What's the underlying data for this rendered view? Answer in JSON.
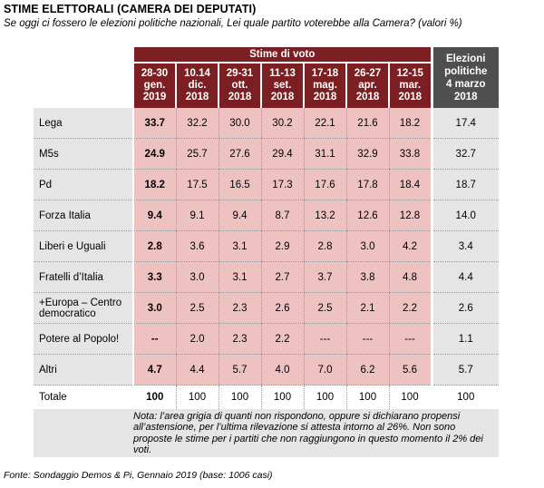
{
  "title": "STIME ELETTORALI (CAMERA DEI DEPUTATI)",
  "subtitle": "Se oggi ci fossero le elezioni politiche nazionali, Lei quale partito voterebbe alla Camera? (valori %)",
  "table": {
    "group_header": "Stime di voto",
    "columns": [
      {
        "l1": "28-30",
        "l2": "gen.",
        "l3": "2019"
      },
      {
        "l1": "10.14",
        "l2": "dic.",
        "l3": "2018"
      },
      {
        "l1": "29-31",
        "l2": "ott.",
        "l3": "2018"
      },
      {
        "l1": "11-13",
        "l2": "set.",
        "l3": "2018"
      },
      {
        "l1": "17-18",
        "l2": "mag.",
        "l3": "2018"
      },
      {
        "l1": "26-27",
        "l2": "apr.",
        "l3": "2018"
      },
      {
        "l1": "12-15",
        "l2": "mar.",
        "l3": "2018"
      }
    ],
    "elections_header": {
      "l1": "Elezioni",
      "l2": "politiche",
      "l3": "4 marzo",
      "l4": "2018"
    },
    "rows": [
      {
        "party": "Lega",
        "values": [
          "33.7",
          "32.2",
          "30.0",
          "30.2",
          "22.1",
          "21.6",
          "18.2"
        ],
        "elections": "17.4"
      },
      {
        "party": "M5s",
        "values": [
          "24.9",
          "25.7",
          "27.6",
          "29.4",
          "31.1",
          "32.9",
          "33.8"
        ],
        "elections": "32.7"
      },
      {
        "party": "Pd",
        "values": [
          "18.2",
          "17.5",
          "16.5",
          "17.3",
          "17.6",
          "17.8",
          "18.4"
        ],
        "elections": "18.7"
      },
      {
        "party": "Forza Italia",
        "values": [
          "9.4",
          "9.1",
          "9.4",
          "8.7",
          "13.2",
          "12.6",
          "12.8"
        ],
        "elections": "14.0"
      },
      {
        "party": "Liberi e Uguali",
        "values": [
          "2.8",
          "3.6",
          "3.1",
          "2.9",
          "2.8",
          "3.0",
          "4.2"
        ],
        "elections": "3.4"
      },
      {
        "party": "Fratelli d’Italia",
        "values": [
          "3.3",
          "3.0",
          "3.1",
          "2.7",
          "3.7",
          "3.8",
          "4.8"
        ],
        "elections": "4.4"
      },
      {
        "party": "+Europa – Centro democratico",
        "values": [
          "3.0",
          "2.5",
          "2.3",
          "2.6",
          "2.5",
          "2.1",
          "2.2"
        ],
        "elections": "2.6"
      },
      {
        "party": "Potere al Popolo!",
        "values": [
          "--",
          "2.0",
          "2.3",
          "2.2",
          "---",
          "---",
          "---"
        ],
        "elections": "1.1"
      },
      {
        "party": "Altri",
        "values": [
          "4.7",
          "4.4",
          "5.7",
          "4.0",
          "7.0",
          "6.2",
          "5.6"
        ],
        "elections": "5.7"
      }
    ],
    "total": {
      "label": "Totale",
      "values": [
        "100",
        "100",
        "100",
        "100",
        "100",
        "100",
        "100"
      ],
      "elections": "100"
    }
  },
  "note": "Nota: l’area grigia di quanti non rispondono, oppure si dichiarano propensi all’astensione, per l’ultima rilevazione si attesta intorno al 26%. Non sono proposte le stime per i partiti che non raggiungono in questo momento il 2% dei voti.",
  "source": "Fonte: Sondaggio Demos & Pi, Gennaio 2019 (base: 1006 casi)",
  "colors": {
    "header_red": "#7b1f23",
    "cell_pink": "#efc2c2",
    "header_grey": "#4f4f4f",
    "cell_grey": "#e5e5e5"
  }
}
